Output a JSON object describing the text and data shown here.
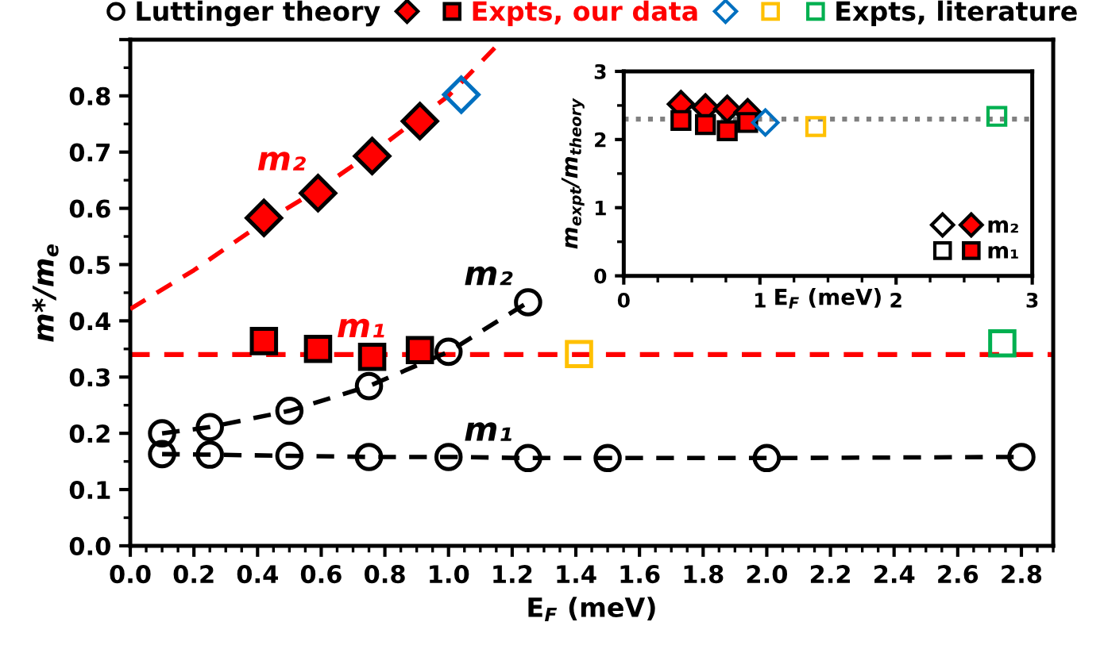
{
  "chart_data": [
    {
      "type": "scatter",
      "xlabel": "E$_{F}$ (meV)",
      "ylabel": "m*/m$_{e}$",
      "xlim": [
        0,
        2.9
      ],
      "ylim": [
        0,
        0.9
      ],
      "xticks": [
        {
          "value": 0,
          "label": "0.0"
        },
        {
          "value": 0.2,
          "label": "0.2"
        },
        {
          "value": 0.4,
          "label": "0.4"
        },
        {
          "value": 0.6,
          "label": "0.6"
        },
        {
          "value": 0.8,
          "label": "0.8"
        },
        {
          "value": 1.0,
          "label": "1.0"
        },
        {
          "value": 1.2,
          "label": "1.2"
        },
        {
          "value": 1.4,
          "label": "1.4"
        },
        {
          "value": 1.6,
          "label": "1.6"
        },
        {
          "value": 1.8,
          "label": "1.8"
        },
        {
          "value": 2.0,
          "label": "2.0"
        },
        {
          "value": 2.2,
          "label": "2.2"
        },
        {
          "value": 2.4,
          "label": "2.4"
        },
        {
          "value": 2.6,
          "label": "2.6"
        },
        {
          "value": 2.8,
          "label": "2.8"
        }
      ],
      "yticks": [
        {
          "value": 0,
          "label": "0.0"
        },
        0.1,
        0.2,
        0.3,
        0.4,
        0.5,
        0.6,
        0.7,
        0.8,
        {
          "value": 0.9,
          "label": null
        }
      ],
      "grid": false,
      "legend": "top",
      "series": [
        {
          "name": "Luttinger theory",
          "type": "line",
          "color": "#000000",
          "marker": "circle",
          "line_style": "dashed",
          "x": [
            0.1,
            0.25,
            0.5,
            0.75,
            1.0,
            1.25,
            1.5,
            2.0,
            2.8
          ],
          "values": [
            0.163,
            0.162,
            0.16,
            0.158,
            0.158,
            0.156,
            0.156,
            0.156,
            0.158
          ]
        },
        {
          "type": "line",
          "color": "#000000",
          "marker": "circle",
          "line_style": "dashed",
          "x": [
            0.1,
            0.25,
            0.5,
            0.75,
            1.0,
            1.25
          ],
          "values": [
            0.2,
            0.211,
            0.24,
            0.284,
            0.345,
            0.433
          ]
        },
        {
          "type": "line",
          "color": "#ff0000",
          "marker": "none",
          "line_style": "dashed",
          "x": [
            0,
            0.2,
            0.4,
            0.6,
            0.8,
            1.0,
            1.17
          ],
          "values": [
            0.421,
            0.49,
            0.568,
            0.637,
            0.715,
            0.8,
            0.9
          ]
        },
        {
          "color": "#ff0000",
          "marker": "diamond",
          "x": [
            0.42,
            0.59,
            0.76,
            0.91
          ],
          "values": [
            0.583,
            0.627,
            0.693,
            0.755
          ]
        },
        {
          "name": "Expts, our data",
          "color": "#ff0000",
          "marker": "square",
          "x": [
            0.42,
            0.59,
            0.76,
            0.91
          ],
          "values": [
            0.364,
            0.35,
            0.336,
            0.348
          ]
        },
        {
          "color": "#0070c0",
          "marker": "diamond",
          "x": [
            1.04
          ],
          "values": [
            0.802
          ]
        },
        {
          "color": "#ffc000",
          "marker": "square",
          "x": [
            1.41
          ],
          "values": [
            0.341
          ]
        },
        {
          "name": "Expts, literature",
          "color": "#00b050",
          "marker": "square",
          "x": [
            2.74
          ],
          "values": [
            0.36
          ]
        }
      ],
      "ref_lines": [
        {
          "axis": "y",
          "value": 0.34,
          "color": "#ff0000",
          "line_style": "dashed"
        }
      ],
      "annotations": [
        {
          "text": "m₂",
          "x": 0.6,
          "y": 0.637
        },
        {
          "text": "m₁",
          "x": 0.85,
          "y": 0.34
        },
        {
          "text": "m₂",
          "x": 1.25,
          "y": 0.433
        },
        {
          "text": "m₁",
          "x": 1.25,
          "y": 0.156
        }
      ]
    },
    {
      "type": "scatter",
      "xlabel": "E$_{F}$ (meV)",
      "ylabel": "m$_{expt}$/m$_{theory}$",
      "xlim": [
        0,
        3
      ],
      "ylim": [
        0,
        3
      ],
      "xticks": [
        0,
        1,
        2,
        3
      ],
      "yticks": [
        0,
        1,
        2,
        3
      ],
      "grid": false,
      "legend": "bottom right",
      "series": [
        {
          "name": "m₂",
          "color": "#ff0000",
          "marker": "diamond",
          "x": [
            0.42,
            0.6,
            0.76,
            0.91
          ],
          "values": [
            2.52,
            2.47,
            2.45,
            2.4
          ]
        },
        {
          "name": "m₁",
          "color": "#ff0000",
          "marker": "square",
          "x": [
            0.42,
            0.6,
            0.76,
            0.91
          ],
          "values": [
            2.28,
            2.22,
            2.13,
            2.25
          ]
        },
        {
          "color": "#0070c0",
          "marker": "diamond",
          "x": [
            1.04
          ],
          "values": [
            2.25
          ]
        },
        {
          "color": "#ffc000",
          "marker": "square",
          "x": [
            1.41
          ],
          "values": [
            2.19
          ]
        },
        {
          "color": "#00b050",
          "marker": "square",
          "x": [
            2.74
          ],
          "values": [
            2.34
          ]
        }
      ],
      "ref_lines": [
        {
          "axis": "y",
          "value": 2.3,
          "color": "#808080",
          "line_style": "dotted"
        }
      ]
    }
  ]
}
